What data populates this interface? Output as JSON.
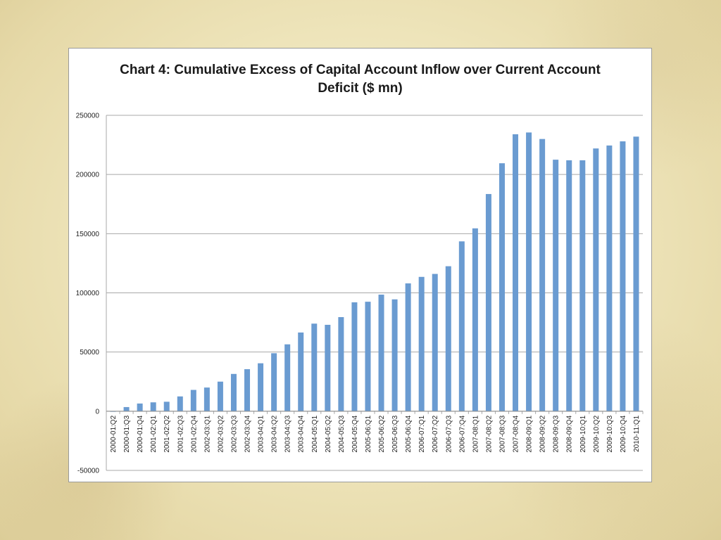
{
  "chart_data": {
    "type": "bar",
    "title_line1": "Chart 4: Cumulative Excess of Capital Account Inflow over Current Account",
    "title_line2": "Deficit ($ mn)",
    "xlabel": "",
    "ylabel": "",
    "ylim": [
      -50000,
      250000
    ],
    "yticks": [
      250000,
      200000,
      150000,
      100000,
      50000,
      0,
      -50000
    ],
    "grid": true,
    "bar_color": "#6a9bd1",
    "categories": [
      "2000-01:Q2",
      "2000-01:Q3",
      "2000-01:Q4",
      "2001-02:Q1",
      "2001-02:Q2",
      "2001-02:Q3",
      "2001-02:Q4",
      "2002-03:Q1",
      "2002-03:Q2",
      "2002-03:Q3",
      "2002-03:Q4",
      "2003-04:Q1",
      "2003-04:Q2",
      "2003-04:Q3",
      "2003-04:Q4",
      "2004-05:Q1",
      "2004-05:Q2",
      "2004-05:Q3",
      "2004-05:Q4",
      "2005-06:Q1",
      "2005-06:Q2",
      "2005-06:Q3",
      "2005-06:Q4",
      "2006-07:Q1",
      "2006-07:Q2",
      "2006-07:Q3",
      "2006-07:Q4",
      "2007-08:Q1",
      "2007-08:Q2",
      "2007-08:Q3",
      "2007-08:Q4",
      "2008-09:Q1",
      "2008-09:Q2",
      "2008-09:Q3",
      "2008-09:Q4",
      "2009-10:Q1",
      "2009-10:Q2",
      "2009-10:Q3",
      "2009-10:Q4",
      "2010-11:Q1"
    ],
    "values": [
      -500,
      3500,
      6500,
      7500,
      8000,
      12500,
      18000,
      20000,
      25000,
      31500,
      35500,
      40500,
      49000,
      56500,
      66500,
      74000,
      73000,
      79500,
      92000,
      92500,
      98500,
      94500,
      108000,
      113500,
      116000,
      122500,
      143500,
      154500,
      183500,
      209500,
      234000,
      235500,
      230000,
      212500,
      212000,
      212000,
      222000,
      224500,
      228000,
      232000
    ]
  }
}
